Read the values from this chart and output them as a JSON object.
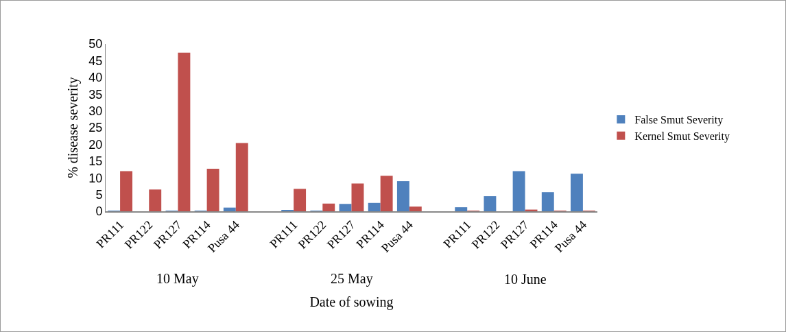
{
  "chart_data": {
    "type": "bar",
    "xlabel": "Date of sowing",
    "ylabel": "% disease severity",
    "categories": [
      "PR111",
      "PR122",
      "PR127",
      "PR114",
      "Pusa 44",
      null,
      "PR111",
      "PR122",
      "PR127",
      "PR114",
      "Pusa 44",
      null,
      "PR111",
      "PR122",
      "PR127",
      "PR114",
      "Pusa 44"
    ],
    "series": [
      {
        "name": "False Smut Severity",
        "color": "#4f81bd",
        "values": [
          0.1,
          0,
          0.2,
          0.1,
          1.1,
          null,
          0.4,
          0.2,
          2.2,
          2.5,
          9.0,
          null,
          1.2,
          4.5,
          12.0,
          5.7,
          11.2
        ]
      },
      {
        "name": "Kernel Smut Severity",
        "color": "#c0504d",
        "values": [
          12.0,
          6.5,
          47.4,
          12.7,
          20.4,
          null,
          6.7,
          2.3,
          8.3,
          10.6,
          1.4,
          null,
          0.1,
          0,
          0.5,
          0.2,
          0.2
        ]
      }
    ],
    "annotations": [
      "10 May",
      "25 May",
      "10 June"
    ],
    "ylim": [
      0,
      50
    ],
    "yticks": [
      0,
      5,
      10,
      15,
      20,
      25,
      30,
      35,
      40,
      45,
      50
    ],
    "grid": false,
    "legend": "right"
  }
}
